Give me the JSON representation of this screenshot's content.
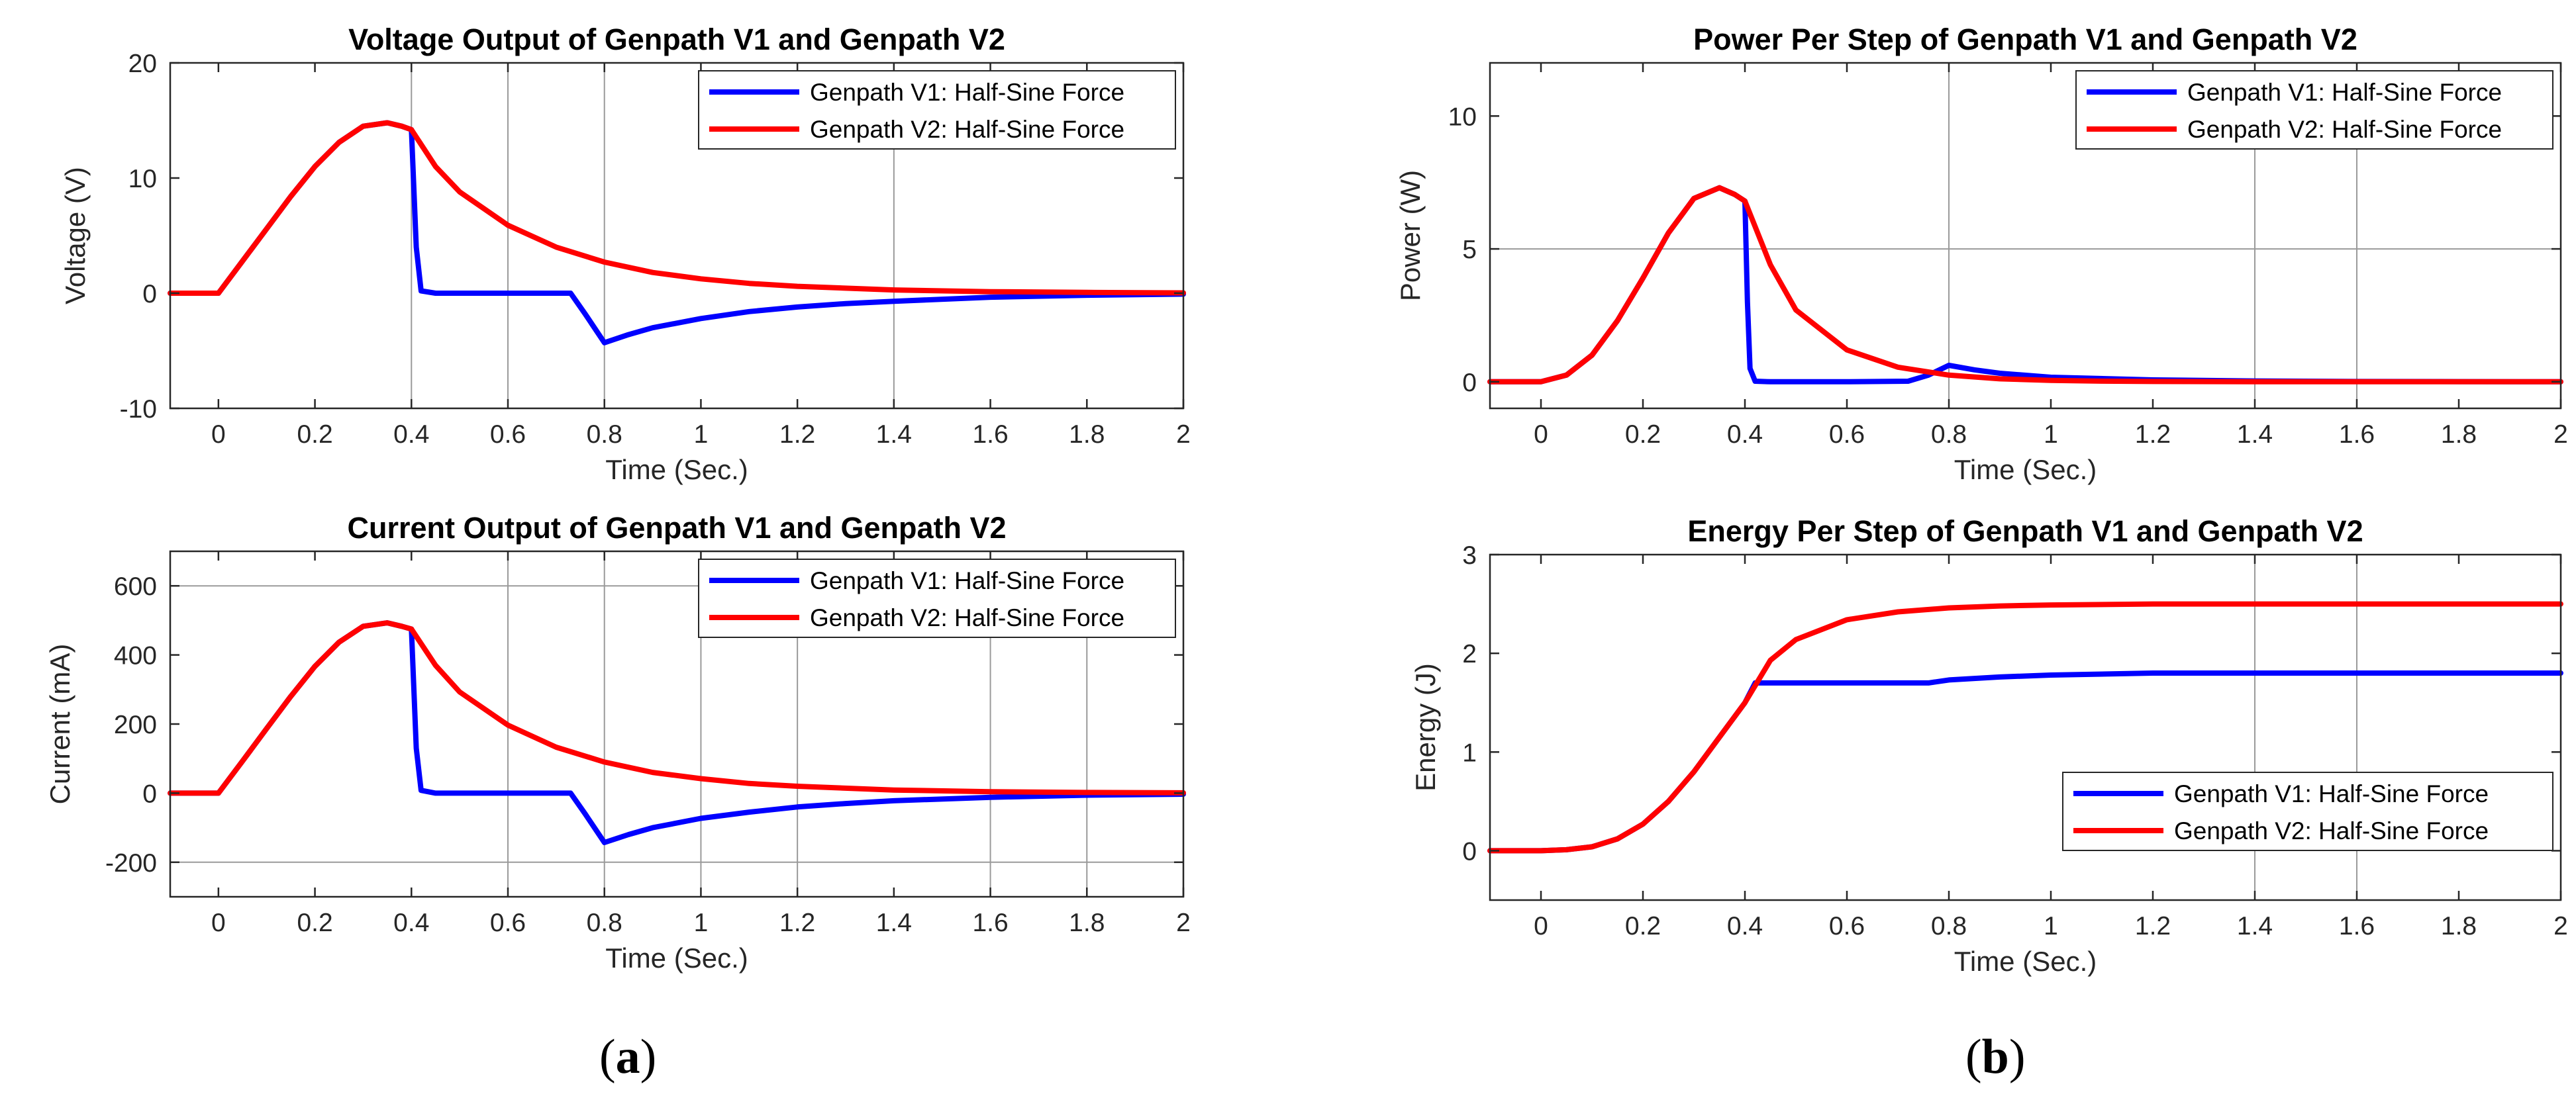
{
  "figure": {
    "panel_labels": {
      "a": "a",
      "b": "b"
    }
  },
  "chart_data": [
    {
      "id": "voltage",
      "type": "line",
      "title": "Voltage Output of Genpath V1 and Genpath V2",
      "xlabel": "Time (Sec.)",
      "ylabel": "Voltage (V)",
      "xlim": [
        -0.1,
        2
      ],
      "ylim": [
        -10,
        20
      ],
      "xticks": [
        0,
        0.2,
        0.4,
        0.6,
        0.8,
        1,
        1.2,
        1.4,
        1.6,
        1.8,
        2
      ],
      "xtick_labels": [
        "0",
        "0.2",
        "0.4",
        "0.6",
        "0.8",
        "1",
        "1.2",
        "1.4",
        "1.6",
        "1.8",
        "2"
      ],
      "yticks": [
        -10,
        0,
        10,
        20
      ],
      "ytick_labels": [
        "-10",
        "0",
        "10",
        "20"
      ],
      "legend_position": "top-right",
      "series": [
        {
          "name": "Genpath V1: Half-Sine Force",
          "color": "#0000ff",
          "x": [
            -0.1,
            0,
            0.05,
            0.1,
            0.15,
            0.2,
            0.25,
            0.3,
            0.35,
            0.38,
            0.4,
            0.41,
            0.42,
            0.45,
            0.6,
            0.72,
            0.73,
            0.76,
            0.8,
            0.85,
            0.9,
            1.0,
            1.1,
            1.2,
            1.3,
            1.4,
            1.6,
            1.8,
            2.0
          ],
          "y": [
            0,
            0,
            2.8,
            5.6,
            8.4,
            11.0,
            13.1,
            14.5,
            14.8,
            14.5,
            14.2,
            4.0,
            0.2,
            0,
            0,
            0,
            0,
            -1.8,
            -4.3,
            -3.6,
            -3.0,
            -2.2,
            -1.6,
            -1.2,
            -0.9,
            -0.7,
            -0.35,
            -0.18,
            -0.08
          ]
        },
        {
          "name": "Genpath V2: Half-Sine Force",
          "color": "#ff0000",
          "x": [
            -0.1,
            0,
            0.05,
            0.1,
            0.15,
            0.2,
            0.25,
            0.3,
            0.35,
            0.38,
            0.4,
            0.45,
            0.5,
            0.6,
            0.7,
            0.8,
            0.9,
            1.0,
            1.1,
            1.2,
            1.4,
            1.6,
            1.8,
            2.0
          ],
          "y": [
            0,
            0,
            2.8,
            5.6,
            8.4,
            11.0,
            13.1,
            14.5,
            14.8,
            14.5,
            14.2,
            11.0,
            8.8,
            5.9,
            4.0,
            2.7,
            1.8,
            1.25,
            0.85,
            0.6,
            0.28,
            0.13,
            0.07,
            0.03
          ]
        }
      ]
    },
    {
      "id": "current",
      "type": "line",
      "title": "Current Output of Genpath V1 and Genpath V2",
      "xlabel": "Time (Sec.)",
      "ylabel": "Current (mA)",
      "xlim": [
        -0.1,
        2
      ],
      "ylim": [
        -300,
        700
      ],
      "xticks": [
        0,
        0.2,
        0.4,
        0.6,
        0.8,
        1,
        1.2,
        1.4,
        1.6,
        1.8,
        2
      ],
      "xtick_labels": [
        "0",
        "0.2",
        "0.4",
        "0.6",
        "0.8",
        "1",
        "1.2",
        "1.4",
        "1.6",
        "1.8",
        "2"
      ],
      "yticks": [
        -200,
        0,
        200,
        400,
        600
      ],
      "ytick_labels": [
        "-200",
        "0",
        "200",
        "400",
        "600"
      ],
      "legend_position": "top-right",
      "series": [
        {
          "name": "Genpath V1: Half-Sine Force",
          "color": "#0000ff",
          "x": [
            -0.1,
            0,
            0.05,
            0.1,
            0.15,
            0.2,
            0.25,
            0.3,
            0.35,
            0.38,
            0.4,
            0.41,
            0.42,
            0.45,
            0.6,
            0.72,
            0.73,
            0.76,
            0.8,
            0.85,
            0.9,
            1.0,
            1.1,
            1.2,
            1.3,
            1.4,
            1.6,
            1.8,
            2.0
          ],
          "y": [
            0,
            0,
            93,
            187,
            280,
            367,
            437,
            483,
            493,
            483,
            475,
            130,
            8,
            0,
            0,
            0,
            0,
            -60,
            -143,
            -120,
            -100,
            -73,
            -55,
            -40,
            -30,
            -22,
            -12,
            -6,
            -3
          ]
        },
        {
          "name": "Genpath V2: Half-Sine Force",
          "color": "#ff0000",
          "x": [
            -0.1,
            0,
            0.05,
            0.1,
            0.15,
            0.2,
            0.25,
            0.3,
            0.35,
            0.38,
            0.4,
            0.45,
            0.5,
            0.6,
            0.7,
            0.8,
            0.9,
            1.0,
            1.1,
            1.2,
            1.4,
            1.6,
            1.8,
            2.0
          ],
          "y": [
            0,
            0,
            93,
            187,
            280,
            367,
            437,
            483,
            493,
            483,
            475,
            370,
            293,
            197,
            133,
            90,
            60,
            42,
            28,
            20,
            9,
            4,
            2,
            1
          ]
        }
      ]
    },
    {
      "id": "power",
      "type": "line",
      "title": "Power Per Step of Genpath V1 and Genpath V2",
      "xlabel": "Time (Sec.)",
      "ylabel": "Power (W)",
      "xlim": [
        -0.1,
        2
      ],
      "ylim": [
        -1,
        12
      ],
      "xticks": [
        0,
        0.2,
        0.4,
        0.6,
        0.8,
        1,
        1.2,
        1.4,
        1.6,
        1.8,
        2
      ],
      "xtick_labels": [
        "0",
        "0.2",
        "0.4",
        "0.6",
        "0.8",
        "1",
        "1.2",
        "1.4",
        "1.6",
        "1.8",
        "2"
      ],
      "yticks": [
        0,
        5,
        10
      ],
      "ytick_labels": [
        "0",
        "5",
        "10"
      ],
      "legend_position": "top-right",
      "series": [
        {
          "name": "Genpath V1: Half-Sine Force",
          "color": "#0000ff",
          "x": [
            -0.1,
            0,
            0.05,
            0.1,
            0.15,
            0.2,
            0.25,
            0.3,
            0.35,
            0.38,
            0.4,
            0.405,
            0.41,
            0.42,
            0.45,
            0.6,
            0.72,
            0.76,
            0.8,
            0.85,
            0.9,
            1.0,
            1.2,
            1.4,
            1.6,
            1.8,
            2.0
          ],
          "y": [
            0,
            0,
            0.25,
            1.0,
            2.3,
            3.9,
            5.6,
            6.9,
            7.3,
            7.05,
            6.8,
            3.0,
            0.5,
            0.02,
            0,
            0,
            0.02,
            0.25,
            0.62,
            0.45,
            0.32,
            0.17,
            0.07,
            0.03,
            0.01,
            0.005,
            0
          ]
        },
        {
          "name": "Genpath V2: Half-Sine Force",
          "color": "#ff0000",
          "x": [
            -0.1,
            0,
            0.05,
            0.1,
            0.15,
            0.2,
            0.25,
            0.3,
            0.35,
            0.38,
            0.4,
            0.45,
            0.5,
            0.6,
            0.7,
            0.8,
            0.9,
            1.0,
            1.1,
            1.2,
            1.4,
            1.6,
            1.8,
            2.0
          ],
          "y": [
            0,
            0,
            0.25,
            1.0,
            2.3,
            3.9,
            5.6,
            6.9,
            7.3,
            7.05,
            6.8,
            4.4,
            2.7,
            1.2,
            0.55,
            0.25,
            0.11,
            0.05,
            0.024,
            0.011,
            0.003,
            0.001,
            0,
            0
          ]
        }
      ]
    },
    {
      "id": "energy",
      "type": "line",
      "title": "Energy Per Step of Genpath V1 and Genpath V2",
      "xlabel": "Time (Sec.)",
      "ylabel": "Energy (J)",
      "xlim": [
        -0.1,
        2
      ],
      "ylim": [
        -0.5,
        3
      ],
      "xticks": [
        0,
        0.2,
        0.4,
        0.6,
        0.8,
        1,
        1.2,
        1.4,
        1.6,
        1.8,
        2
      ],
      "xtick_labels": [
        "0",
        "0.2",
        "0.4",
        "0.6",
        "0.8",
        "1",
        "1.2",
        "1.4",
        "1.6",
        "1.8",
        "2"
      ],
      "yticks": [
        0,
        1,
        2,
        3
      ],
      "ytick_labels": [
        "0",
        "1",
        "2",
        "3"
      ],
      "legend_position": "bottom-right",
      "series": [
        {
          "name": "Genpath V1: Half-Sine Force",
          "color": "#0000ff",
          "x": [
            -0.1,
            0,
            0.05,
            0.1,
            0.15,
            0.2,
            0.25,
            0.3,
            0.35,
            0.4,
            0.42,
            0.6,
            0.76,
            0.8,
            0.9,
            1.0,
            1.2,
            1.4,
            1.6,
            2.0
          ],
          "y": [
            0,
            0,
            0.01,
            0.04,
            0.12,
            0.27,
            0.5,
            0.8,
            1.15,
            1.5,
            1.7,
            1.7,
            1.7,
            1.73,
            1.76,
            1.78,
            1.8,
            1.8,
            1.8,
            1.8
          ]
        },
        {
          "name": "Genpath V2: Half-Sine Force",
          "color": "#ff0000",
          "x": [
            -0.1,
            0,
            0.05,
            0.1,
            0.15,
            0.2,
            0.25,
            0.3,
            0.35,
            0.4,
            0.45,
            0.5,
            0.6,
            0.7,
            0.8,
            0.9,
            1.0,
            1.2,
            1.4,
            2.0
          ],
          "y": [
            0,
            0,
            0.01,
            0.04,
            0.12,
            0.27,
            0.5,
            0.8,
            1.15,
            1.5,
            1.93,
            2.14,
            2.34,
            2.42,
            2.46,
            2.48,
            2.49,
            2.5,
            2.5,
            2.5
          ]
        }
      ]
    }
  ]
}
